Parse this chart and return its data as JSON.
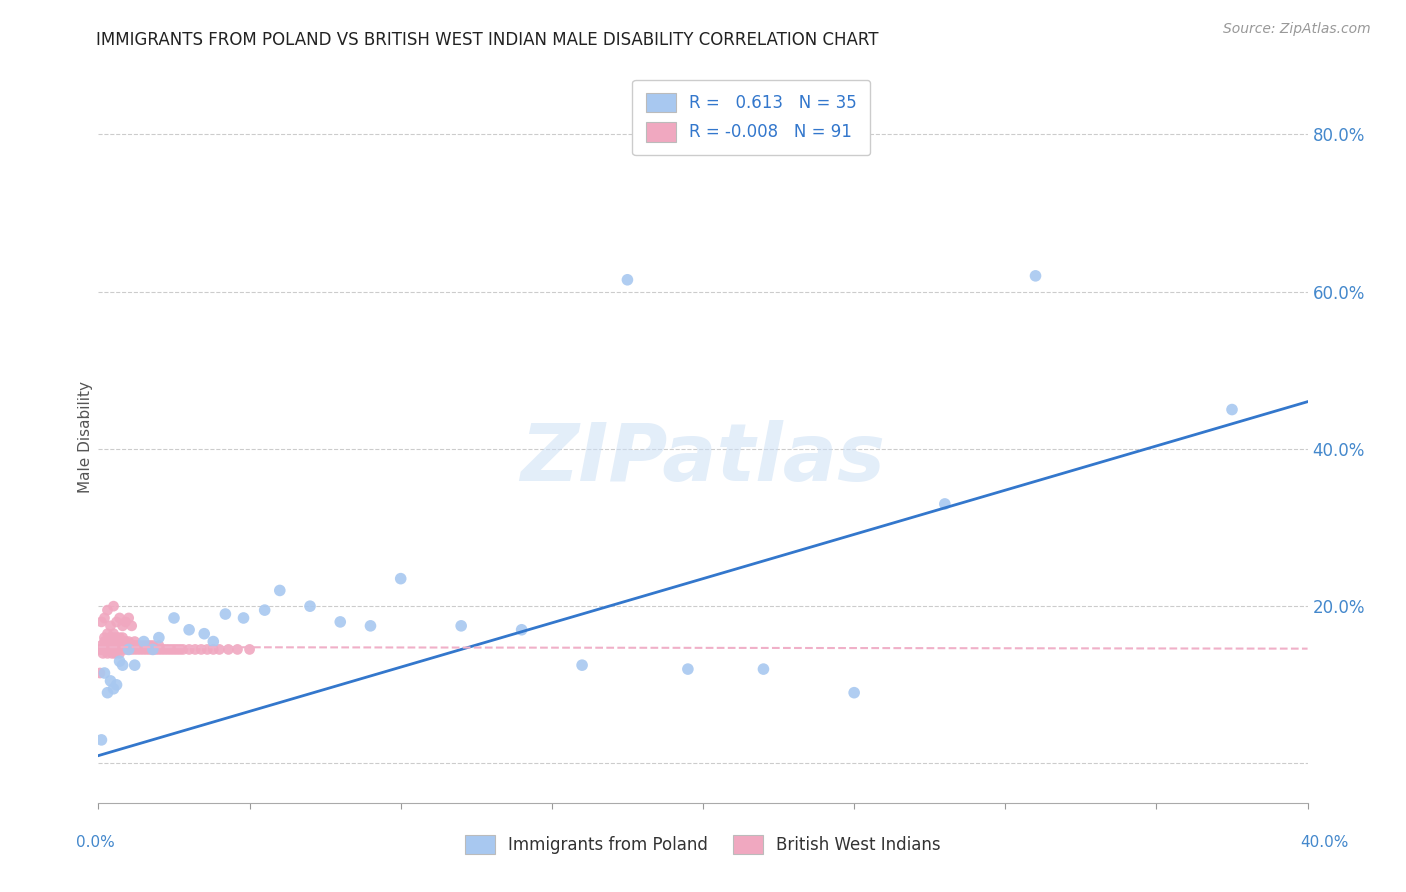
{
  "title": "IMMIGRANTS FROM POLAND VS BRITISH WEST INDIAN MALE DISABILITY CORRELATION CHART",
  "source": "Source: ZipAtlas.com",
  "ylabel": "Male Disability",
  "R_poland": 0.613,
  "N_poland": 35,
  "R_bwi": -0.008,
  "N_bwi": 91,
  "poland_color": "#a8c8f0",
  "bwi_color": "#f0a8c0",
  "trendline_poland_color": "#3377cc",
  "trendline_bwi_color": "#f0b0c8",
  "watermark": "ZIPatlas",
  "poland_x": [
    0.001,
    0.002,
    0.003,
    0.004,
    0.005,
    0.006,
    0.007,
    0.008,
    0.01,
    0.012,
    0.015,
    0.018,
    0.02,
    0.025,
    0.03,
    0.035,
    0.038,
    0.042,
    0.048,
    0.055,
    0.06,
    0.07,
    0.08,
    0.09,
    0.1,
    0.12,
    0.14,
    0.16,
    0.175,
    0.195,
    0.22,
    0.25,
    0.28,
    0.31,
    0.375
  ],
  "poland_y": [
    0.03,
    0.115,
    0.09,
    0.105,
    0.095,
    0.1,
    0.13,
    0.125,
    0.145,
    0.125,
    0.155,
    0.145,
    0.16,
    0.185,
    0.17,
    0.165,
    0.155,
    0.19,
    0.185,
    0.195,
    0.22,
    0.2,
    0.18,
    0.175,
    0.235,
    0.175,
    0.17,
    0.125,
    0.615,
    0.12,
    0.12,
    0.09,
    0.33,
    0.62,
    0.45
  ],
  "bwi_x": [
    0.0005,
    0.001,
    0.001,
    0.0015,
    0.002,
    0.002,
    0.002,
    0.0025,
    0.003,
    0.003,
    0.003,
    0.003,
    0.0035,
    0.004,
    0.004,
    0.004,
    0.0045,
    0.005,
    0.005,
    0.005,
    0.005,
    0.005,
    0.0055,
    0.006,
    0.006,
    0.006,
    0.006,
    0.007,
    0.007,
    0.007,
    0.0075,
    0.008,
    0.008,
    0.008,
    0.009,
    0.009,
    0.009,
    0.01,
    0.01,
    0.01,
    0.011,
    0.011,
    0.012,
    0.012,
    0.012,
    0.013,
    0.013,
    0.014,
    0.014,
    0.015,
    0.015,
    0.016,
    0.016,
    0.017,
    0.017,
    0.018,
    0.018,
    0.019,
    0.02,
    0.02,
    0.021,
    0.022,
    0.023,
    0.024,
    0.025,
    0.026,
    0.027,
    0.028,
    0.03,
    0.032,
    0.034,
    0.036,
    0.038,
    0.04,
    0.043,
    0.046,
    0.05,
    0.0005,
    0.001,
    0.002,
    0.003,
    0.004,
    0.005,
    0.006,
    0.007,
    0.008,
    0.009,
    0.01,
    0.011
  ],
  "bwi_y": [
    0.145,
    0.145,
    0.15,
    0.14,
    0.145,
    0.155,
    0.16,
    0.15,
    0.14,
    0.15,
    0.155,
    0.165,
    0.145,
    0.15,
    0.155,
    0.16,
    0.14,
    0.145,
    0.15,
    0.155,
    0.16,
    0.165,
    0.14,
    0.145,
    0.15,
    0.155,
    0.16,
    0.14,
    0.15,
    0.16,
    0.145,
    0.15,
    0.155,
    0.16,
    0.145,
    0.15,
    0.155,
    0.145,
    0.15,
    0.155,
    0.145,
    0.15,
    0.145,
    0.15,
    0.155,
    0.145,
    0.15,
    0.145,
    0.15,
    0.145,
    0.15,
    0.145,
    0.15,
    0.145,
    0.15,
    0.145,
    0.15,
    0.145,
    0.145,
    0.15,
    0.145,
    0.145,
    0.145,
    0.145,
    0.145,
    0.145,
    0.145,
    0.145,
    0.145,
    0.145,
    0.145,
    0.145,
    0.145,
    0.145,
    0.145,
    0.145,
    0.145,
    0.115,
    0.18,
    0.185,
    0.195,
    0.175,
    0.2,
    0.18,
    0.185,
    0.175,
    0.18,
    0.185,
    0.175
  ],
  "xlim": [
    0.0,
    0.4
  ],
  "ylim": [
    -0.05,
    0.88
  ],
  "ytick_vals": [
    0.0,
    0.2,
    0.4,
    0.6,
    0.8
  ],
  "ytick_labels": [
    "",
    "20.0%",
    "40.0%",
    "60.0%",
    "80.0%"
  ],
  "xtick_vals": [
    0.0,
    0.05,
    0.1,
    0.15,
    0.2,
    0.25,
    0.3,
    0.35,
    0.4
  ],
  "poland_trendline_x": [
    0.0,
    0.4
  ],
  "poland_trendline_y": [
    0.01,
    0.46
  ],
  "bwi_trendline_x": [
    0.0,
    0.4
  ],
  "bwi_trendline_y": [
    0.148,
    0.146
  ]
}
